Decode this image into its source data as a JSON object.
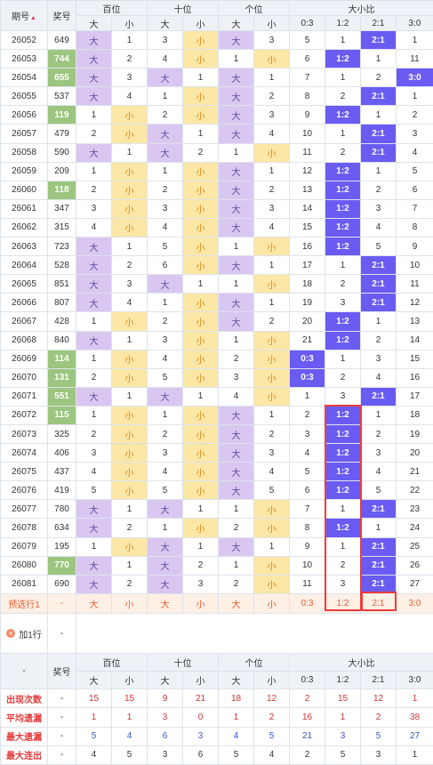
{
  "header": {
    "period": "期号",
    "award": "奖号",
    "bai": "百位",
    "shi": "十位",
    "ge": "个位",
    "ratio": "大小比",
    "sub": [
      "大",
      "小",
      "大",
      "小",
      "大",
      "小",
      "0:3",
      "1:2",
      "2:1",
      "3:0"
    ]
  },
  "rows": [
    {
      "p": "26052",
      "n": "649",
      "c": [
        "大",
        "1",
        "3",
        "小",
        "大",
        "3",
        "5",
        "1",
        "2:1",
        "1"
      ],
      "n_hl": false
    },
    {
      "p": "26053",
      "n": "744",
      "c": [
        "大",
        "2",
        "4",
        "小",
        "1",
        "小",
        "6",
        "1:2",
        "1",
        "11"
      ],
      "n_hl": true
    },
    {
      "p": "26054",
      "n": "655",
      "c": [
        "大",
        "3",
        "大",
        "1",
        "大",
        "1",
        "7",
        "1",
        "2",
        "3:0"
      ],
      "n_hl": true
    },
    {
      "p": "26055",
      "n": "537",
      "c": [
        "大",
        "4",
        "1",
        "小",
        "大",
        "2",
        "8",
        "2",
        "2:1",
        "1"
      ],
      "n_hl": false
    },
    {
      "p": "26056",
      "n": "119",
      "c": [
        "1",
        "小",
        "2",
        "小",
        "大",
        "3",
        "9",
        "1:2",
        "1",
        "2"
      ],
      "n_hl": true
    },
    {
      "p": "26057",
      "n": "479",
      "c": [
        "2",
        "小",
        "大",
        "1",
        "大",
        "4",
        "10",
        "1",
        "2:1",
        "3"
      ],
      "n_hl": false
    },
    {
      "p": "26058",
      "n": "590",
      "c": [
        "大",
        "1",
        "大",
        "2",
        "1",
        "小",
        "11",
        "2",
        "2:1",
        "4"
      ],
      "n_hl": false
    },
    {
      "p": "26059",
      "n": "209",
      "c": [
        "1",
        "小",
        "1",
        "小",
        "大",
        "1",
        "12",
        "1:2",
        "1",
        "5"
      ],
      "n_hl": false
    },
    {
      "p": "26060",
      "n": "118",
      "c": [
        "2",
        "小",
        "2",
        "小",
        "大",
        "2",
        "13",
        "1:2",
        "2",
        "6"
      ],
      "n_hl": true
    },
    {
      "p": "26061",
      "n": "347",
      "c": [
        "3",
        "小",
        "3",
        "小",
        "大",
        "3",
        "14",
        "1:2",
        "3",
        "7"
      ],
      "n_hl": false
    },
    {
      "p": "26062",
      "n": "315",
      "c": [
        "4",
        "小",
        "4",
        "小",
        "大",
        "4",
        "15",
        "1:2",
        "4",
        "8"
      ],
      "n_hl": false
    },
    {
      "p": "26063",
      "n": "723",
      "c": [
        "大",
        "1",
        "5",
        "小",
        "1",
        "小",
        "16",
        "1:2",
        "5",
        "9"
      ],
      "n_hl": false
    },
    {
      "p": "26064",
      "n": "528",
      "c": [
        "大",
        "2",
        "6",
        "小",
        "大",
        "1",
        "17",
        "1",
        "2:1",
        "10"
      ],
      "n_hl": false
    },
    {
      "p": "26065",
      "n": "851",
      "c": [
        "大",
        "3",
        "大",
        "1",
        "1",
        "小",
        "18",
        "2",
        "2:1",
        "11"
      ],
      "n_hl": false
    },
    {
      "p": "26066",
      "n": "807",
      "c": [
        "大",
        "4",
        "1",
        "小",
        "大",
        "1",
        "19",
        "3",
        "2:1",
        "12"
      ],
      "n_hl": false
    },
    {
      "p": "26067",
      "n": "428",
      "c": [
        "1",
        "小",
        "2",
        "小",
        "大",
        "2",
        "20",
        "1:2",
        "1",
        "13"
      ],
      "n_hl": false
    },
    {
      "p": "26068",
      "n": "840",
      "c": [
        "大",
        "1",
        "3",
        "小",
        "1",
        "小",
        "21",
        "1:2",
        "2",
        "14"
      ],
      "n_hl": false
    },
    {
      "p": "26069",
      "n": "114",
      "c": [
        "1",
        "小",
        "4",
        "小",
        "2",
        "小",
        "0:3",
        "1",
        "3",
        "15"
      ],
      "n_hl": true
    },
    {
      "p": "26070",
      "n": "131",
      "c": [
        "2",
        "小",
        "5",
        "小",
        "3",
        "小",
        "0:3",
        "2",
        "4",
        "16"
      ],
      "n_hl": true
    },
    {
      "p": "26071",
      "n": "551",
      "c": [
        "大",
        "1",
        "大",
        "1",
        "4",
        "小",
        "1",
        "3",
        "2:1",
        "17"
      ],
      "n_hl": true
    },
    {
      "p": "26072",
      "n": "115",
      "c": [
        "1",
        "小",
        "1",
        "小",
        "大",
        "1",
        "2",
        "1:2",
        "1",
        "18"
      ],
      "n_hl": true
    },
    {
      "p": "26073",
      "n": "325",
      "c": [
        "2",
        "小",
        "2",
        "小",
        "大",
        "2",
        "3",
        "1:2",
        "2",
        "19"
      ],
      "n_hl": false
    },
    {
      "p": "26074",
      "n": "406",
      "c": [
        "3",
        "小",
        "3",
        "小",
        "大",
        "3",
        "4",
        "1:2",
        "3",
        "20"
      ],
      "n_hl": false
    },
    {
      "p": "26075",
      "n": "437",
      "c": [
        "4",
        "小",
        "4",
        "小",
        "大",
        "4",
        "5",
        "1:2",
        "4",
        "21"
      ],
      "n_hl": false
    },
    {
      "p": "26076",
      "n": "419",
      "c": [
        "5",
        "小",
        "5",
        "小",
        "大",
        "5",
        "6",
        "1:2",
        "5",
        "22"
      ],
      "n_hl": false
    },
    {
      "p": "26077",
      "n": "780",
      "c": [
        "大",
        "1",
        "大",
        "1",
        "1",
        "小",
        "7",
        "1",
        "2:1",
        "23"
      ],
      "n_hl": false
    },
    {
      "p": "26078",
      "n": "634",
      "c": [
        "大",
        "2",
        "1",
        "小",
        "2",
        "小",
        "8",
        "1:2",
        "1",
        "24"
      ],
      "n_hl": false
    },
    {
      "p": "26079",
      "n": "195",
      "c": [
        "1",
        "小",
        "大",
        "1",
        "大",
        "1",
        "9",
        "1",
        "2:1",
        "25"
      ],
      "n_hl": false
    },
    {
      "p": "26080",
      "n": "770",
      "c": [
        "大",
        "1",
        "大",
        "2",
        "1",
        "小",
        "10",
        "2",
        "2:1",
        "26"
      ],
      "n_hl": true
    },
    {
      "p": "26081",
      "n": "690",
      "c": [
        "大",
        "2",
        "大",
        "3",
        "2",
        "小",
        "11",
        "3",
        "2:1",
        "27"
      ],
      "n_hl": false
    }
  ],
  "forecast": {
    "label": "预选行1",
    "dash": "-",
    "cells": [
      "大",
      "小",
      "大",
      "小",
      "大",
      "小",
      "0:3",
      "1:2",
      "2:1",
      "3:0"
    ]
  },
  "add": {
    "label": "加1行",
    "dash": "-"
  },
  "footer_header": {
    "dash": "-",
    "award": "奖号"
  },
  "stats": [
    {
      "label": "出现次数",
      "dash": "-",
      "vals": [
        "15",
        "15",
        "9",
        "21",
        "18",
        "12",
        "2",
        "15",
        "12",
        "1"
      ]
    },
    {
      "label": "平均遗漏",
      "dash": "-",
      "vals": [
        "1",
        "1",
        "3",
        "0",
        "1",
        "2",
        "16",
        "1",
        "2",
        "38"
      ]
    },
    {
      "label": "最大遗漏",
      "dash": "-",
      "vals": [
        "5",
        "4",
        "6",
        "3",
        "4",
        "5",
        "21",
        "3",
        "5",
        "27"
      ]
    },
    {
      "label": "最大连出",
      "dash": "-",
      "vals": [
        "4",
        "5",
        "3",
        "6",
        "5",
        "4",
        "2",
        "5",
        "3",
        "1"
      ]
    }
  ],
  "colors": {
    "accent_purple": "#6a5cf2",
    "highlight_red": "#ee3b3b",
    "light_purple": "#d9c7f2",
    "yellow": "#fce7a6",
    "green": "#9cc67f"
  }
}
